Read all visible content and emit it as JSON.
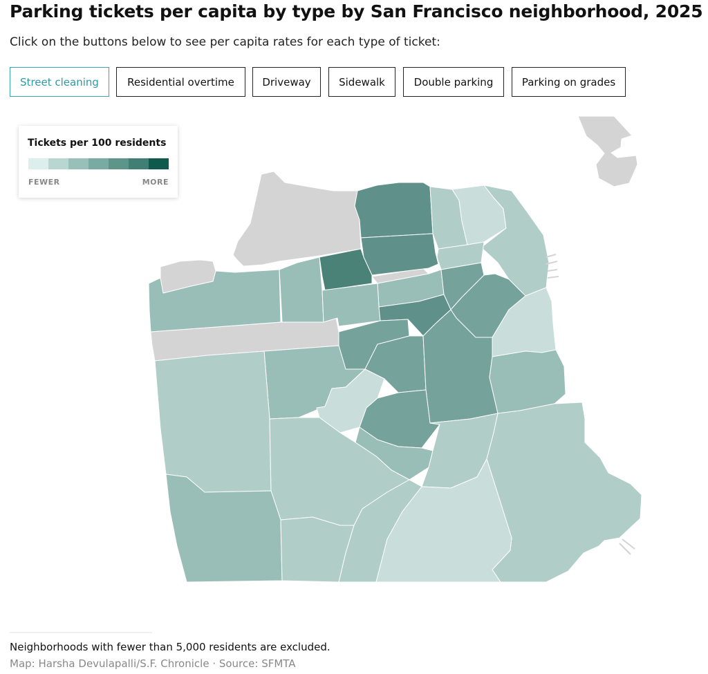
{
  "title": "Parking tickets per capita by type by San Francisco neighborhood, 2025",
  "subtitle": "Click on the buttons below to see per capita rates for each type of ticket:",
  "buttons": [
    {
      "label": "Street cleaning",
      "active": true
    },
    {
      "label": "Residential overtime",
      "active": false
    },
    {
      "label": "Driveway",
      "active": false
    },
    {
      "label": "Sidewalk",
      "active": false
    },
    {
      "label": "Double parking",
      "active": false
    },
    {
      "label": "Parking on grades",
      "active": false
    }
  ],
  "legend": {
    "title": "Tickets per 100 residents",
    "low_label": "FEWER",
    "high_label": "MORE",
    "ramp_colors": [
      "#dcefed",
      "#b9d6d1",
      "#98c0b8",
      "#7aab a2",
      "#5e958b",
      "#417f74",
      "#0f5a4c"
    ]
  },
  "colors": {
    "active_button": "#3aa6b0",
    "excluded": "#d4d4d4",
    "bucket_1": "#c9dedb",
    "bucket_2": "#b0cdc8",
    "bucket_3": "#99beb7",
    "bucket_4": "#75a29b",
    "bucket_5": "#5f918a",
    "bucket_6": "#4b8277"
  },
  "note": "Neighborhoods with fewer than 5,000 residents are excluded.",
  "credit": "Map: Harsha Devulapalli/S.F. Chronicle · Source: SFMTA"
}
